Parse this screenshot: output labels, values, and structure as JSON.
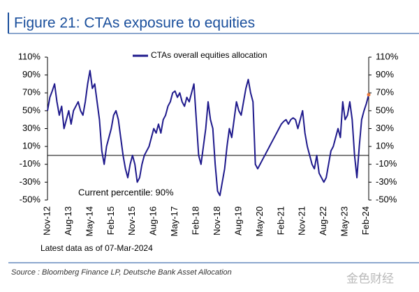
{
  "chart_data": {
    "type": "line",
    "title": "Figure 21: CTAs exposure to equities",
    "annotation": "Current percentile: 90%",
    "note": "Latest data as of 07-Mar-2024",
    "source": "Source : Bloomberg Finance LP, Deutsche Bank Asset Allocation",
    "watermark": "金色财经",
    "categories": [
      "Nov-12",
      null,
      null,
      null,
      null,
      null,
      null,
      null,
      null,
      "Aug-13",
      null,
      null,
      null,
      null,
      null,
      null,
      null,
      null,
      "May-14",
      null,
      null,
      null,
      null,
      null,
      null,
      null,
      null,
      "Feb-15",
      null,
      null,
      null,
      null,
      null,
      null,
      null,
      null,
      "Nov-15",
      null,
      null,
      null,
      null,
      null,
      null,
      null,
      null,
      "Aug-16",
      null,
      null,
      null,
      null,
      null,
      null,
      null,
      null,
      "May-17",
      null,
      null,
      null,
      null,
      null,
      null,
      null,
      null,
      "Feb-18",
      null,
      null,
      null,
      null,
      null,
      null,
      null,
      null,
      "Nov-18",
      null,
      null,
      null,
      null,
      null,
      null,
      null,
      null,
      "Aug-19",
      null,
      null,
      null,
      null,
      null,
      null,
      null,
      null,
      "May-20",
      null,
      null,
      null,
      null,
      null,
      null,
      null,
      null,
      "Feb-21",
      null,
      null,
      null,
      null,
      null,
      null,
      null,
      null,
      "Nov-21",
      null,
      null,
      null,
      null,
      null,
      null,
      null,
      null,
      "Aug-22",
      null,
      null,
      null,
      null,
      null,
      null,
      null,
      null,
      "May-23",
      null,
      null,
      null,
      null,
      null,
      null,
      null,
      null,
      "Feb-24",
      null
    ],
    "series": [
      {
        "name": "CTAs overall equities allocation",
        "color": "#1f1a8c",
        "last_point_color": "#e8783c",
        "values": [
          50,
          65,
          72,
          80,
          60,
          45,
          55,
          30,
          40,
          50,
          35,
          50,
          55,
          60,
          50,
          45,
          60,
          80,
          95,
          75,
          80,
          60,
          40,
          5,
          -10,
          10,
          20,
          30,
          45,
          50,
          40,
          20,
          0,
          -15,
          -25,
          -10,
          0,
          -10,
          -30,
          -25,
          -10,
          0,
          5,
          10,
          20,
          30,
          25,
          35,
          25,
          40,
          45,
          55,
          60,
          70,
          72,
          65,
          70,
          60,
          55,
          65,
          60,
          70,
          80,
          40,
          0,
          -10,
          10,
          30,
          60,
          40,
          30,
          -10,
          -40,
          -45,
          -30,
          -15,
          10,
          30,
          20,
          40,
          60,
          50,
          45,
          60,
          75,
          85,
          70,
          60,
          -10,
          -15,
          -10,
          -5,
          0,
          5,
          10,
          15,
          20,
          25,
          30,
          35,
          38,
          40,
          35,
          40,
          42,
          40,
          30,
          40,
          50,
          25,
          10,
          0,
          -10,
          -15,
          0,
          -20,
          -25,
          -30,
          -25,
          -10,
          5,
          10,
          20,
          30,
          20,
          60,
          40,
          45,
          60,
          40,
          0,
          -25,
          10,
          40,
          50,
          58,
          68
        ]
      }
    ],
    "ylim": [
      -50,
      110
    ],
    "yticks": [
      {
        "value": 110,
        "label": "110%"
      },
      {
        "value": 90,
        "label": "90%"
      },
      {
        "value": 70,
        "label": "70%"
      },
      {
        "value": 50,
        "label": "50%"
      },
      {
        "value": 30,
        "label": "30%"
      },
      {
        "value": 10,
        "label": "10%"
      },
      {
        "value": -10,
        "label": "-10%"
      },
      {
        "value": -30,
        "label": "-30%"
      },
      {
        "value": -50,
        "label": "-50%"
      }
    ],
    "y2lim": [
      -50,
      110
    ],
    "y2ticks": [
      {
        "value": 110,
        "label": "110%"
      },
      {
        "value": 90,
        "label": "90%"
      },
      {
        "value": 70,
        "label": "70%"
      },
      {
        "value": 50,
        "label": "50%"
      },
      {
        "value": 30,
        "label": "30%"
      },
      {
        "value": 10,
        "label": "10%"
      },
      {
        "value": -10,
        "label": "-10%"
      },
      {
        "value": -30,
        "label": "-30%"
      },
      {
        "value": -50,
        "label": "-50%"
      }
    ],
    "zero_line": true,
    "legend": "top"
  }
}
